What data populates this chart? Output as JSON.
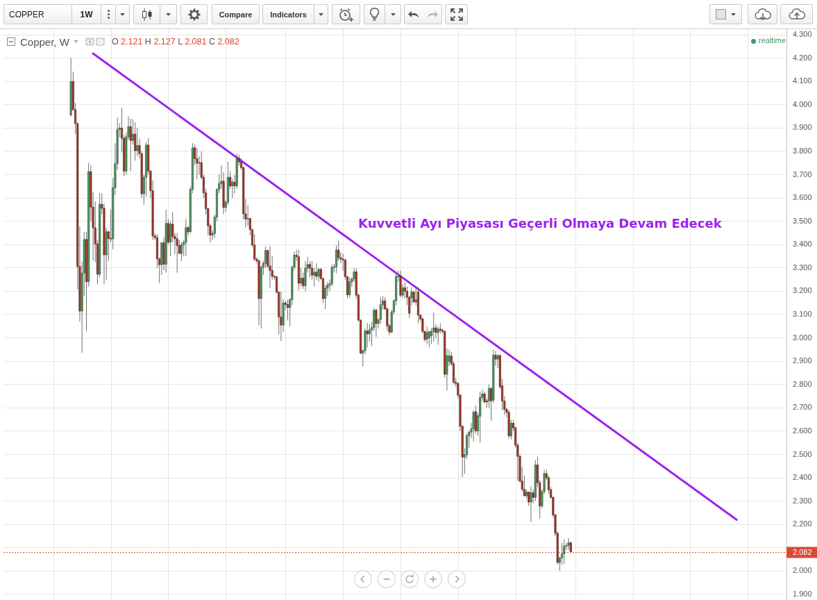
{
  "chart_data": {
    "type": "candlestick",
    "title": "Copper, W",
    "categories": [
      null,
      null,
      null,
      null,
      null,
      null,
      null,
      null,
      null,
      null,
      null,
      null,
      null,
      null,
      null,
      null,
      null,
      null,
      null,
      null,
      null,
      null,
      null,
      null,
      null,
      null,
      null,
      null,
      null,
      null,
      null,
      null,
      null,
      null,
      null,
      null,
      null,
      null,
      null,
      null,
      null,
      null,
      null,
      null,
      null,
      null,
      null,
      null,
      null,
      null,
      null,
      null,
      null,
      null,
      null,
      null,
      null,
      null,
      null,
      null,
      null,
      null,
      null,
      null,
      null,
      null,
      null,
      null,
      null,
      null,
      null,
      null,
      null,
      null,
      null,
      null,
      null,
      null,
      null,
      null,
      null,
      null,
      null,
      null,
      null,
      null,
      null,
      null,
      null,
      null,
      null,
      null,
      null,
      null,
      null,
      null,
      null,
      null,
      null,
      null,
      null,
      null,
      null,
      null,
      null,
      null,
      null,
      null,
      null,
      null,
      null,
      null,
      null,
      null,
      null,
      null,
      null,
      null,
      null,
      null,
      null,
      null,
      null,
      null,
      null,
      null,
      null,
      null,
      null,
      null,
      null,
      null,
      null,
      null,
      null,
      null,
      null,
      null,
      null,
      null,
      null,
      null,
      null,
      null,
      null,
      null,
      null,
      null,
      null,
      null,
      null,
      null,
      null,
      null,
      null,
      null,
      null,
      null,
      null,
      null,
      null,
      null,
      null,
      null,
      null,
      null,
      null,
      null,
      null,
      null,
      null,
      null,
      null,
      null,
      null,
      null,
      null,
      null,
      null,
      null,
      null,
      null,
      null,
      null,
      null,
      null,
      null,
      null,
      null,
      null,
      null,
      null,
      null,
      null,
      null,
      null,
      null,
      null,
      null,
      null,
      null,
      null,
      null,
      null,
      null,
      null,
      null,
      null,
      null,
      null,
      null,
      null,
      null,
      null,
      null,
      null,
      null,
      null,
      null,
      null,
      null,
      null,
      null,
      null,
      null,
      null,
      null,
      null,
      null,
      null,
      null,
      null,
      null,
      null,
      null,
      null,
      null,
      null,
      null,
      null,
      null,
      null,
      null,
      null,
      null,
      null,
      null,
      null,
      null,
      null,
      null,
      null,
      null,
      null,
      null,
      null,
      null,
      null,
      null,
      null,
      null,
      null,
      null,
      null,
      null,
      null,
      null,
      null,
      null,
      null,
      null,
      null,
      null,
      null,
      null,
      null,
      null,
      null,
      null,
      null,
      null,
      null,
      null,
      null,
      null,
      null,
      null,
      null,
      null,
      null,
      null,
      null,
      null,
      null,
      null,
      null,
      null,
      null,
      null,
      null,
      null,
      null,
      null,
      null,
      null,
      null,
      null,
      null,
      null,
      null,
      null,
      null,
      null,
      null,
      null,
      null,
      null,
      null,
      null,
      null,
      null,
      null,
      null,
      null,
      null,
      null,
      null,
      null,
      null,
      null,
      null,
      null,
      null,
      null,
      null,
      null,
      null,
      null,
      null,
      null,
      null,
      null,
      null,
      null,
      null,
      null,
      null,
      null,
      null,
      null,
      null,
      null,
      null,
      null
    ],
    "ohlc": [
      null,
      null,
      null,
      null,
      null,
      null,
      null,
      null,
      null,
      null,
      null,
      null,
      null,
      null,
      null,
      null,
      null,
      null,
      null,
      null,
      null,
      null,
      null,
      null,
      null,
      null,
      null,
      null,
      null,
      null,
      [
        3.956,
        4.2,
        3.95,
        4.1
      ],
      [
        4.1,
        4.142,
        3.975,
        3.979
      ],
      [
        3.979,
        4.008,
        3.874,
        3.919
      ],
      [
        3.919,
        3.925,
        3.209,
        3.306
      ],
      [
        3.306,
        3.477,
        3.07,
        3.115
      ],
      [
        3.115,
        3.328,
        2.936,
        3.278
      ],
      [
        3.278,
        3.455,
        3.18,
        3.422
      ],
      [
        3.422,
        3.455,
        3.03,
        3.241
      ],
      [
        3.241,
        3.75,
        3.22,
        3.713
      ],
      [
        3.713,
        3.74,
        3.5,
        3.561
      ],
      [
        3.561,
        3.625,
        3.333,
        3.472
      ],
      [
        3.472,
        3.585,
        3.325,
        3.403
      ],
      [
        3.403,
        3.42,
        3.23,
        3.273
      ],
      [
        3.273,
        3.621,
        3.26,
        3.573
      ],
      [
        3.573,
        3.62,
        3.53,
        3.556
      ],
      [
        3.556,
        3.575,
        3.23,
        3.356
      ],
      [
        3.356,
        3.472,
        3.25,
        3.455
      ],
      [
        3.455,
        3.46,
        3.33,
        3.427
      ],
      [
        3.427,
        3.55,
        3.41,
        3.425
      ],
      [
        3.425,
        3.686,
        3.38,
        3.644
      ],
      [
        3.644,
        3.834,
        3.614,
        3.747
      ],
      [
        3.747,
        3.944,
        3.72,
        3.894
      ],
      [
        3.894,
        3.92,
        3.86,
        3.9
      ],
      [
        3.9,
        3.987,
        3.795,
        3.856
      ],
      [
        3.856,
        3.87,
        3.695,
        3.715
      ],
      [
        3.715,
        3.88,
        3.7,
        3.862
      ],
      [
        3.862,
        3.95,
        3.85,
        3.906
      ],
      [
        3.906,
        3.94,
        3.715,
        3.847
      ],
      [
        3.847,
        3.937,
        3.83,
        3.874
      ],
      [
        3.874,
        3.925,
        3.76,
        3.803
      ],
      [
        3.803,
        3.9,
        3.78,
        3.825
      ],
      [
        3.825,
        3.855,
        3.77,
        3.79
      ],
      [
        3.79,
        3.8,
        3.6,
        3.618
      ],
      [
        3.618,
        3.7,
        3.571,
        3.689
      ],
      [
        3.689,
        3.84,
        3.606,
        3.827
      ],
      [
        3.827,
        3.857,
        3.7,
        3.715
      ],
      [
        3.715,
        3.72,
        3.6,
        3.631
      ],
      [
        3.631,
        3.675,
        3.42,
        3.437
      ],
      [
        3.437,
        3.45,
        3.42,
        3.43
      ],
      [
        3.43,
        3.445,
        3.3,
        3.339
      ],
      [
        3.339,
        3.345,
        3.235,
        3.314
      ],
      [
        3.314,
        3.41,
        3.27,
        3.408
      ],
      [
        3.408,
        3.43,
        3.29,
        3.316
      ],
      [
        3.316,
        3.55,
        3.28,
        3.491
      ],
      [
        3.491,
        3.51,
        3.4,
        3.411
      ],
      [
        3.411,
        3.5,
        3.35,
        3.488
      ],
      [
        3.488,
        3.54,
        3.41,
        3.435
      ],
      [
        3.435,
        3.45,
        3.36,
        3.425
      ],
      [
        3.425,
        3.45,
        3.28,
        3.396
      ],
      [
        3.396,
        3.42,
        3.36,
        3.362
      ],
      [
        3.362,
        3.41,
        3.33,
        3.399
      ],
      [
        3.399,
        3.42,
        3.35,
        3.41
      ],
      [
        3.41,
        3.51,
        3.35,
        3.473
      ],
      [
        3.473,
        3.48,
        3.44,
        3.455
      ],
      [
        3.455,
        3.65,
        3.45,
        3.637
      ],
      [
        3.637,
        3.835,
        3.62,
        3.815
      ],
      [
        3.815,
        3.83,
        3.74,
        3.769
      ],
      [
        3.769,
        3.815,
        3.68,
        3.749
      ],
      [
        3.749,
        3.78,
        3.7,
        3.752
      ],
      [
        3.752,
        3.8,
        3.68,
        3.689
      ],
      [
        3.689,
        3.7,
        3.6,
        3.622
      ],
      [
        3.622,
        3.64,
        3.53,
        3.554
      ],
      [
        3.554,
        3.56,
        3.44,
        3.481
      ],
      [
        3.481,
        3.49,
        3.41,
        3.441
      ],
      [
        3.441,
        3.46,
        3.42,
        3.448
      ],
      [
        3.448,
        3.53,
        3.43,
        3.518
      ],
      [
        3.518,
        3.64,
        3.5,
        3.637
      ],
      [
        3.637,
        3.7,
        3.62,
        3.662
      ],
      [
        3.662,
        3.74,
        3.64,
        3.672
      ],
      [
        3.672,
        3.71,
        3.53,
        3.56
      ],
      [
        3.56,
        3.59,
        3.54,
        3.582
      ],
      [
        3.582,
        3.755,
        3.57,
        3.689
      ],
      [
        3.689,
        3.715,
        3.64,
        3.652
      ],
      [
        3.652,
        3.68,
        3.6,
        3.668
      ],
      [
        3.668,
        3.7,
        3.62,
        3.652
      ],
      [
        3.652,
        3.79,
        3.64,
        3.77
      ],
      [
        3.77,
        3.785,
        3.74,
        3.755
      ],
      [
        3.755,
        3.77,
        3.72,
        3.73
      ],
      [
        3.73,
        3.735,
        3.507,
        3.532
      ],
      [
        3.532,
        3.596,
        3.472,
        3.51
      ],
      [
        3.51,
        3.57,
        3.48,
        3.512
      ],
      [
        3.512,
        3.515,
        3.44,
        3.464
      ],
      [
        3.464,
        3.47,
        3.39,
        3.398
      ],
      [
        3.398,
        3.444,
        3.33,
        3.338
      ],
      [
        3.338,
        3.345,
        3.32,
        3.331
      ],
      [
        3.331,
        3.335,
        3.055,
        3.169
      ],
      [
        3.169,
        3.31,
        3.04,
        3.303
      ],
      [
        3.303,
        3.33,
        3.27,
        3.32
      ],
      [
        3.32,
        3.393,
        3.3,
        3.375
      ],
      [
        3.375,
        3.378,
        3.3,
        3.308
      ],
      [
        3.308,
        3.393,
        3.214,
        3.289
      ],
      [
        3.289,
        3.353,
        3.25,
        3.264
      ],
      [
        3.264,
        3.27,
        3.25,
        3.262
      ],
      [
        3.262,
        3.265,
        3.19,
        3.196
      ],
      [
        3.196,
        3.2,
        3.015,
        3.09
      ],
      [
        3.09,
        3.199,
        2.986,
        3.055
      ],
      [
        3.055,
        3.165,
        3.025,
        3.15
      ],
      [
        3.15,
        3.16,
        3.12,
        3.143
      ],
      [
        3.143,
        3.164,
        3.075,
        3.13
      ],
      [
        3.13,
        3.17,
        3.05,
        3.164
      ],
      [
        3.164,
        3.31,
        3.14,
        3.303
      ],
      [
        3.303,
        3.37,
        3.29,
        3.355
      ],
      [
        3.355,
        3.378,
        3.33,
        3.348
      ],
      [
        3.348,
        3.378,
        3.204,
        3.234
      ],
      [
        3.234,
        3.3,
        3.22,
        3.256
      ],
      [
        3.256,
        3.28,
        3.21,
        3.224
      ],
      [
        3.224,
        3.33,
        3.2,
        3.299
      ],
      [
        3.299,
        3.348,
        3.28,
        3.315
      ],
      [
        3.315,
        3.33,
        3.26,
        3.299
      ],
      [
        3.299,
        3.33,
        3.25,
        3.269
      ],
      [
        3.269,
        3.3,
        3.22,
        3.282
      ],
      [
        3.282,
        3.32,
        3.25,
        3.264
      ],
      [
        3.264,
        3.3,
        3.24,
        3.294
      ],
      [
        3.294,
        3.3,
        3.25,
        3.254
      ],
      [
        3.254,
        3.26,
        3.15,
        3.169
      ],
      [
        3.169,
        3.228,
        3.124,
        3.213
      ],
      [
        3.213,
        3.24,
        3.18,
        3.226
      ],
      [
        3.226,
        3.25,
        3.2,
        3.233
      ],
      [
        3.233,
        3.315,
        3.22,
        3.303
      ],
      [
        3.303,
        3.318,
        3.28,
        3.305
      ],
      [
        3.305,
        3.397,
        3.278,
        3.377
      ],
      [
        3.377,
        3.417,
        3.33,
        3.344
      ],
      [
        3.344,
        3.367,
        3.32,
        3.338
      ],
      [
        3.338,
        3.362,
        3.288,
        3.334
      ],
      [
        3.334,
        3.34,
        3.25,
        3.263
      ],
      [
        3.263,
        3.265,
        3.17,
        3.185
      ],
      [
        3.185,
        3.258,
        3.174,
        3.241
      ],
      [
        3.241,
        3.26,
        3.22,
        3.253
      ],
      [
        3.253,
        3.298,
        3.24,
        3.283
      ],
      [
        3.283,
        3.298,
        3.17,
        3.183
      ],
      [
        3.183,
        3.19,
        3.07,
        3.076
      ],
      [
        3.076,
        3.08,
        2.93,
        2.935
      ],
      [
        2.935,
        2.95,
        2.876,
        2.945
      ],
      [
        2.945,
        3.04,
        2.93,
        3.03
      ],
      [
        3.03,
        3.064,
        2.96,
        3.017
      ],
      [
        3.017,
        3.059,
        2.985,
        3.034
      ],
      [
        3.034,
        3.069,
        2.965,
        3.044
      ],
      [
        3.044,
        3.129,
        3.03,
        3.119
      ],
      [
        3.119,
        3.124,
        3.005,
        3.062
      ],
      [
        3.062,
        3.08,
        3.04,
        3.079
      ],
      [
        3.079,
        3.174,
        3.06,
        3.142
      ],
      [
        3.142,
        3.179,
        3.12,
        3.159
      ],
      [
        3.159,
        3.174,
        3.12,
        3.124
      ],
      [
        3.124,
        3.13,
        3.03,
        3.052
      ],
      [
        3.052,
        3.06,
        3.01,
        3.025
      ],
      [
        3.025,
        3.12,
        3.02,
        3.112
      ],
      [
        3.112,
        3.165,
        3.1,
        3.159
      ],
      [
        3.159,
        3.283,
        3.14,
        3.263
      ],
      [
        3.263,
        3.288,
        3.24,
        3.265
      ],
      [
        3.265,
        3.288,
        3.174,
        3.183
      ],
      [
        3.183,
        3.23,
        3.17,
        3.215
      ],
      [
        3.215,
        3.24,
        3.17,
        3.2
      ],
      [
        3.2,
        3.22,
        3.14,
        3.174
      ],
      [
        3.174,
        3.18,
        3.084,
        3.106
      ],
      [
        3.172,
        3.217,
        3.14,
        3.197
      ],
      [
        3.197,
        3.2,
        3.15,
        3.154
      ],
      [
        3.154,
        3.212,
        3.14,
        3.164
      ],
      [
        3.197,
        3.217,
        3.063,
        3.098
      ],
      [
        3.098,
        3.1,
        3.07,
        3.081
      ],
      [
        3.081,
        3.09,
        3.02,
        3.028
      ],
      [
        3.028,
        3.03,
        2.984,
        2.993
      ],
      [
        2.995,
        3.048,
        2.974,
        3.023
      ],
      [
        3.0,
        3.03,
        2.96,
        3.028
      ],
      [
        3.01,
        3.043,
        2.974,
        3.028
      ],
      [
        3.028,
        3.108,
        2.984,
        3.043
      ],
      [
        3.043,
        3.06,
        3.0,
        3.023
      ],
      [
        3.023,
        3.05,
        2.97,
        3.038
      ],
      [
        3.038,
        3.063,
        3.02,
        3.033
      ],
      [
        3.033,
        3.04,
        3.02,
        3.028
      ],
      [
        3.028,
        3.03,
        2.83,
        2.844
      ],
      [
        2.844,
        2.954,
        2.775,
        2.924
      ],
      [
        2.899,
        2.95,
        2.88,
        2.924
      ],
      [
        2.922,
        2.939,
        2.88,
        2.889
      ],
      [
        2.889,
        2.9,
        2.8,
        2.81
      ],
      [
        2.81,
        2.83,
        2.79,
        2.805
      ],
      [
        2.805,
        2.81,
        2.74,
        2.755
      ],
      [
        2.755,
        2.76,
        2.6,
        2.621
      ],
      [
        2.621,
        2.625,
        2.403,
        2.489
      ],
      [
        2.489,
        2.527,
        2.417,
        2.499
      ],
      [
        2.499,
        2.59,
        2.48,
        2.581
      ],
      [
        2.581,
        2.6,
        2.53,
        2.596
      ],
      [
        2.596,
        2.636,
        2.57,
        2.61
      ],
      [
        2.61,
        2.69,
        2.556,
        2.681
      ],
      [
        2.684,
        2.71,
        2.59,
        2.601
      ],
      [
        2.601,
        2.68,
        2.58,
        2.666
      ],
      [
        2.664,
        2.77,
        2.551,
        2.745
      ],
      [
        2.745,
        2.78,
        2.73,
        2.76
      ],
      [
        2.76,
        2.77,
        2.72,
        2.725
      ],
      [
        2.73,
        2.74,
        2.7,
        2.725
      ],
      [
        2.73,
        2.8,
        2.7,
        2.783
      ],
      [
        2.783,
        2.79,
        2.645,
        2.73
      ],
      [
        2.733,
        2.95,
        2.72,
        2.926
      ],
      [
        2.926,
        2.944,
        2.88,
        2.909
      ],
      [
        2.909,
        2.93,
        2.87,
        2.924
      ],
      [
        2.924,
        2.93,
        2.78,
        2.79
      ],
      [
        2.794,
        2.823,
        2.689,
        2.729
      ],
      [
        2.729,
        2.749,
        2.669,
        2.694
      ],
      [
        2.694,
        2.7,
        2.659,
        2.681
      ],
      [
        2.681,
        2.69,
        2.57,
        2.58
      ],
      [
        2.58,
        2.649,
        2.565,
        2.634
      ],
      [
        2.634,
        2.649,
        2.6,
        2.614
      ],
      [
        2.614,
        2.62,
        2.53,
        2.54
      ],
      [
        2.54,
        2.55,
        2.386,
        2.492
      ],
      [
        2.492,
        2.5,
        2.38,
        2.386
      ],
      [
        2.386,
        2.445,
        2.34,
        2.351
      ],
      [
        2.351,
        2.41,
        2.32,
        2.323
      ],
      [
        2.323,
        2.35,
        2.31,
        2.339
      ],
      [
        2.339,
        2.34,
        2.28,
        2.296
      ],
      [
        2.296,
        2.363,
        2.211,
        2.336
      ],
      [
        2.336,
        2.35,
        2.29,
        2.316
      ],
      [
        2.316,
        2.475,
        2.3,
        2.455
      ],
      [
        2.455,
        2.49,
        2.36,
        2.379
      ],
      [
        2.379,
        2.39,
        2.226,
        2.279
      ],
      [
        2.279,
        2.35,
        2.27,
        2.341
      ],
      [
        2.341,
        2.435,
        2.33,
        2.418
      ],
      [
        2.418,
        2.435,
        2.39,
        2.4
      ],
      [
        2.4,
        2.41,
        2.33,
        2.349
      ],
      [
        2.349,
        2.36,
        2.31,
        2.316
      ],
      [
        2.316,
        2.32,
        2.23,
        2.241
      ],
      [
        2.241,
        2.245,
        2.15,
        2.162
      ],
      [
        2.162,
        2.17,
        2.027,
        2.037
      ],
      [
        2.037,
        2.06,
        2.002,
        2.057
      ],
      [
        2.057,
        2.122,
        2.027,
        2.074
      ],
      [
        2.074,
        2.134,
        2.03,
        2.107
      ],
      [
        2.107,
        2.12,
        2.09,
        2.11
      ],
      [
        2.11,
        2.142,
        2.09,
        2.122
      ],
      [
        2.121,
        2.127,
        2.081,
        2.082
      ],
      null,
      null,
      null,
      null,
      null,
      null,
      null,
      null,
      null,
      null,
      null,
      null,
      null,
      null,
      null,
      null,
      null,
      null,
      null,
      null,
      null,
      null,
      null,
      null,
      null,
      null,
      null,
      null,
      null,
      null,
      null,
      null,
      null,
      null,
      null,
      null,
      null,
      null,
      null,
      null,
      null,
      null,
      null,
      null,
      null,
      null,
      null,
      null,
      null,
      null,
      null,
      null,
      null,
      null,
      null,
      null,
      null,
      null,
      null,
      null,
      null,
      null,
      null,
      null,
      null,
      null,
      null,
      null,
      null,
      null,
      null,
      null,
      null,
      null,
      null,
      null,
      null,
      null,
      null,
      null,
      null,
      null,
      null,
      null,
      null,
      null,
      null,
      null,
      null,
      null,
      null,
      null,
      null,
      null,
      null,
      null,
      null
    ],
    "series": [
      {
        "type": "line",
        "color": "#9d22ee",
        "values": [
          null,
          null,
          null,
          null,
          null,
          null,
          null,
          null,
          null,
          null,
          null,
          null,
          null,
          null,
          null,
          null,
          null,
          null,
          null,
          null,
          null,
          null,
          null,
          null,
          null,
          null,
          null,
          null,
          null,
          null,
          null,
          null,
          null,
          null,
          null,
          null,
          null,
          null,
          null,
          null,
          4.22,
          null,
          null,
          null,
          null,
          null,
          null,
          null,
          null,
          null,
          null,
          null,
          null,
          null,
          null,
          null,
          null,
          null,
          null,
          null,
          null,
          null,
          null,
          null,
          null,
          null,
          null,
          null,
          null,
          null,
          null,
          null,
          null,
          null,
          null,
          null,
          null,
          null,
          null,
          null,
          null,
          null,
          null,
          null,
          null,
          null,
          null,
          null,
          null,
          null,
          null,
          null,
          null,
          null,
          null,
          null,
          null,
          null,
          null,
          null,
          null,
          null,
          null,
          null,
          null,
          null,
          null,
          null,
          null,
          null,
          null,
          null,
          null,
          null,
          null,
          null,
          null,
          null,
          null,
          null,
          null,
          null,
          null,
          null,
          null,
          null,
          null,
          null,
          null,
          null,
          null,
          null,
          null,
          null,
          null,
          null,
          null,
          null,
          null,
          null,
          null,
          null,
          null,
          null,
          null,
          null,
          null,
          null,
          null,
          null,
          null,
          null,
          null,
          null,
          null,
          null,
          null,
          null,
          null,
          null,
          null,
          null,
          null,
          null,
          null,
          null,
          null,
          null,
          null,
          null,
          null,
          null,
          null,
          null,
          null,
          null,
          null,
          null,
          null,
          null,
          null,
          null,
          null,
          null,
          null,
          null,
          null,
          null,
          null,
          null,
          null,
          null,
          null,
          null,
          null,
          null,
          null,
          null,
          null,
          null,
          null,
          null,
          null,
          null,
          null,
          null,
          null,
          null,
          null,
          null,
          null,
          null,
          null,
          null,
          null,
          null,
          null,
          null,
          null,
          null,
          null,
          null,
          null,
          null,
          null,
          null,
          null,
          null,
          null,
          null,
          null,
          null,
          null,
          null,
          null,
          null,
          null,
          null,
          null,
          null,
          null,
          null,
          null,
          null,
          null,
          null,
          null,
          null,
          null,
          null,
          null,
          null,
          null,
          null,
          null,
          null,
          null,
          null,
          null,
          null,
          null,
          null,
          null,
          null,
          null,
          null,
          null,
          null,
          null,
          null,
          null,
          null,
          null,
          null,
          null,
          null,
          null,
          null,
          null,
          null,
          null,
          null,
          null,
          null,
          null,
          null,
          null,
          null,
          null,
          null,
          null,
          null,
          null,
          null,
          null,
          null,
          null,
          null,
          null,
          null,
          null,
          null,
          null,
          null,
          null,
          null,
          null,
          null,
          null,
          null,
          null,
          null,
          null,
          null,
          null,
          null,
          null,
          null,
          null,
          null,
          null,
          null,
          null,
          null,
          null,
          null,
          null,
          null,
          null,
          null,
          null,
          2.22,
          null,
          null,
          null,
          null,
          null,
          null,
          null,
          null,
          null,
          null,
          null,
          null,
          null,
          null,
          null,
          null,
          null,
          null,
          null,
          null,
          null,
          null
        ]
      }
    ],
    "ylim": [
      1.876,
      4.324
    ],
    "yticks": [
      {
        "value": 1.9,
        "label": "1.900"
      },
      {
        "value": 2.0,
        "label": "2.000"
      },
      {
        "value": 2.1,
        "label": null
      },
      {
        "value": 2.2,
        "label": "2.200"
      },
      {
        "value": 2.3,
        "label": "2.300"
      },
      {
        "value": 2.4,
        "label": "2.400"
      },
      {
        "value": 2.5,
        "label": "2.500"
      },
      {
        "value": 2.6,
        "label": "2.600"
      },
      {
        "value": 2.7,
        "label": "2.700"
      },
      {
        "value": 2.8,
        "label": "2.800"
      },
      {
        "value": 2.9,
        "label": "2.900"
      },
      {
        "value": 3.0,
        "label": "3.000"
      },
      {
        "value": 3.1,
        "label": "3.100"
      },
      {
        "value": 3.2,
        "label": "3.200"
      },
      {
        "value": 3.3,
        "label": "3.300"
      },
      {
        "value": 3.4,
        "label": "3.400"
      },
      {
        "value": 3.5,
        "label": "3.500"
      },
      {
        "value": 3.6,
        "label": "3.600"
      },
      {
        "value": 3.7,
        "label": "3.700"
      },
      {
        "value": 3.8,
        "label": "3.800"
      },
      {
        "value": 3.9,
        "label": "3.900"
      },
      {
        "value": 4.0,
        "label": "4.000"
      },
      {
        "value": 4.1,
        "label": "4.100"
      },
      {
        "value": 4.2,
        "label": "4.200"
      },
      {
        "value": 4.3,
        "label": "4.300"
      }
    ],
    "tick_labels": "y",
    "grid": true,
    "ref_lines": [
      {
        "axis": "y",
        "value": 2.082,
        "label": "2.082",
        "color": "#db4a34",
        "line_style": "dotted"
      }
    ],
    "annotations": [
      "Kuvvetli Ayı Piyasası Geçerli Olmaya Devam Edecek",
      "O 2.121 H 2.127 L 2.081 C 2.082",
      "realtime",
      "COPPER",
      "1W",
      "Compare",
      "Indicators"
    ]
  }
}
